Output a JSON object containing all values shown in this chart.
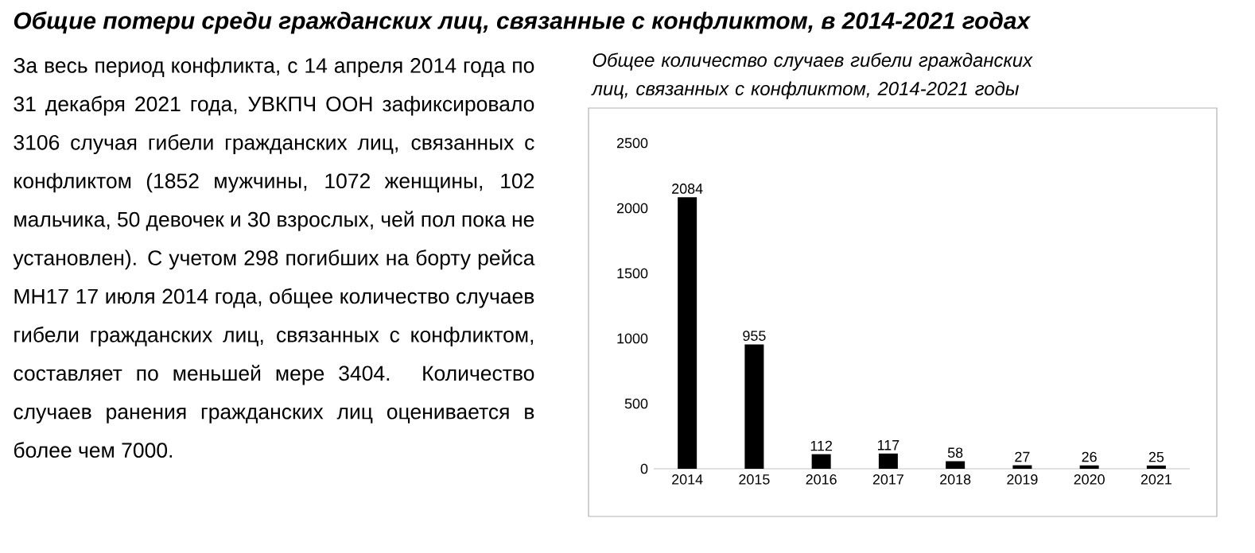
{
  "chart_data": {
    "type": "bar",
    "title": "Общие потери среди гражданских лиц, связанные с конфликтом, в 2014-2021 годах",
    "subtitle": "Общее количество случаев гибели гражданских лиц, связанных с конфликтом, 2014-2021 годы",
    "annotations": [
      "За весь период конфликта, с 14 апреля 2014 года по 31 декабря 2021 года, УВКПЧ ООН зафиксировало 3106 случая гибели гражданских лиц, связанных с конфликтом (1852 мужчины, 1072 женщины, 102 мальчика, 50 девочек и 30 взрослых, чей пол пока не установлен). С учетом 298 погибших на борту рейса MH17 17 июля 2014 года, общее количество случаев гибели гражданских лиц, связанных с конфликтом, составляет по меньшей мере 3404. Количество случаев ранения гражданских лиц оценивается в более чем 7000."
    ],
    "categories": [
      "2014",
      "2015",
      "2016",
      "2017",
      "2018",
      "2019",
      "2020",
      "2021"
    ],
    "values": [
      2084,
      955,
      112,
      117,
      58,
      27,
      26,
      25
    ],
    "color": "#000000",
    "ylim": [
      0,
      2500
    ],
    "yticks": [
      0,
      500,
      1000,
      1500,
      2000,
      2500
    ],
    "data_labels": true
  }
}
